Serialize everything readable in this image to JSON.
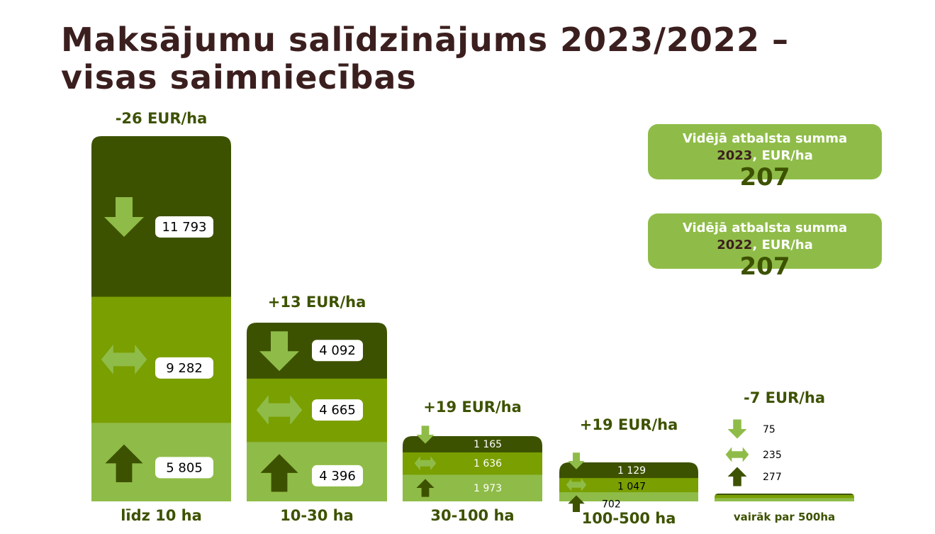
{
  "title": {
    "line1": "Maksājumu salīdzinājums 2023/2022 –",
    "line2": "visas saimniecības"
  },
  "info_boxes": [
    {
      "label": "Vidējā atbalsta summa",
      "year": "2023",
      "unit": ", EUR/ha",
      "value": "207"
    },
    {
      "label": "Vidējā atbalsta summa",
      "year": "2022",
      "unit": ", EUR/ha",
      "value": "207"
    }
  ],
  "colors": {
    "decrease": "#3d5200",
    "same": "#7a9f00",
    "increase": "#8fbc48",
    "icon_light": "#8fbc48",
    "icon_dark": "#3d5200"
  },
  "chart_data": {
    "type": "bar",
    "stacked": true,
    "categories": [
      "līdz 10 ha",
      "10-30 ha",
      "30-100 ha",
      "100-500 ha",
      "vairāk par 500ha"
    ],
    "change_labels": [
      "-26 EUR/ha",
      "+13 EUR/ha",
      "+19 EUR/ha",
      "+19 EUR/ha",
      "-7 EUR/ha"
    ],
    "series": [
      {
        "icon": "arrow-down-icon",
        "values": [
          11793,
          4092,
          1165,
          1129,
          75
        ],
        "labels": [
          "11 793",
          "4 092",
          "1 165",
          "1 129",
          "75"
        ]
      },
      {
        "icon": "arrow-both-icon",
        "values": [
          9282,
          4665,
          1636,
          1047,
          235
        ],
        "labels": [
          "9 282",
          "4 665",
          "1 636",
          "1 047",
          "235"
        ]
      },
      {
        "icon": "arrow-up-icon",
        "values": [
          5805,
          4396,
          1973,
          702,
          277
        ],
        "labels": [
          "5 805",
          "4 396",
          "1 973",
          "702",
          "277"
        ]
      }
    ]
  }
}
